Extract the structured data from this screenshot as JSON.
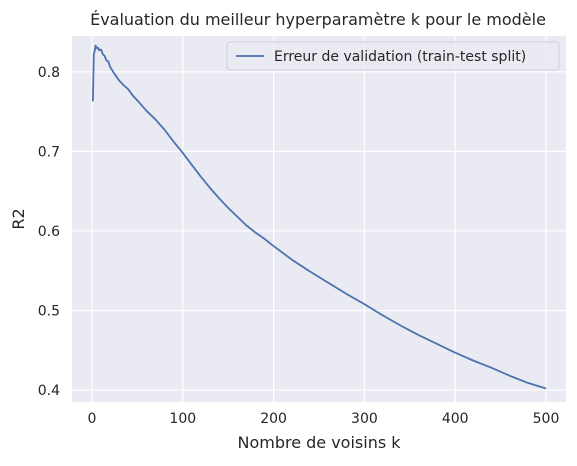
{
  "chart_data": {
    "type": "line",
    "title": "Évaluation du meilleur hyperparamètre k pour le modèle",
    "xlabel": "Nombre de voisins k",
    "ylabel": "R2",
    "xlim": [
      -22,
      522
    ],
    "ylim": [
      0.385,
      0.845
    ],
    "xticks": [
      0,
      100,
      200,
      300,
      400,
      500
    ],
    "yticks": [
      0.4,
      0.5,
      0.6,
      0.7,
      0.8
    ],
    "xtick_labels": [
      "0",
      "100",
      "200",
      "300",
      "400",
      "500"
    ],
    "ytick_labels": [
      "0.4",
      "0.5",
      "0.6",
      "0.7",
      "0.8"
    ],
    "grid": true,
    "legend_position": "top-right",
    "colors": {
      "background": "#EAEAF2",
      "grid": "#FFFFFF",
      "line": "#4C72B0"
    },
    "series": [
      {
        "name": "Erreur de validation (train-test split)",
        "x": [
          1,
          2,
          3,
          4,
          5,
          6,
          7,
          8,
          10,
          12,
          14,
          16,
          18,
          20,
          25,
          30,
          35,
          40,
          45,
          50,
          60,
          70,
          80,
          90,
          100,
          110,
          120,
          130,
          140,
          150,
          160,
          170,
          180,
          190,
          200,
          220,
          240,
          260,
          280,
          300,
          320,
          340,
          360,
          380,
          400,
          420,
          440,
          460,
          480,
          500
        ],
        "y": [
          0.763,
          0.822,
          0.826,
          0.833,
          0.831,
          0.829,
          0.83,
          0.827,
          0.828,
          0.822,
          0.82,
          0.814,
          0.813,
          0.806,
          0.797,
          0.789,
          0.783,
          0.778,
          0.77,
          0.764,
          0.751,
          0.74,
          0.727,
          0.712,
          0.698,
          0.683,
          0.668,
          0.654,
          0.641,
          0.629,
          0.618,
          0.607,
          0.598,
          0.59,
          0.581,
          0.564,
          0.549,
          0.535,
          0.521,
          0.508,
          0.494,
          0.481,
          0.469,
          0.458,
          0.447,
          0.437,
          0.428,
          0.418,
          0.409,
          0.402
        ]
      }
    ]
  }
}
